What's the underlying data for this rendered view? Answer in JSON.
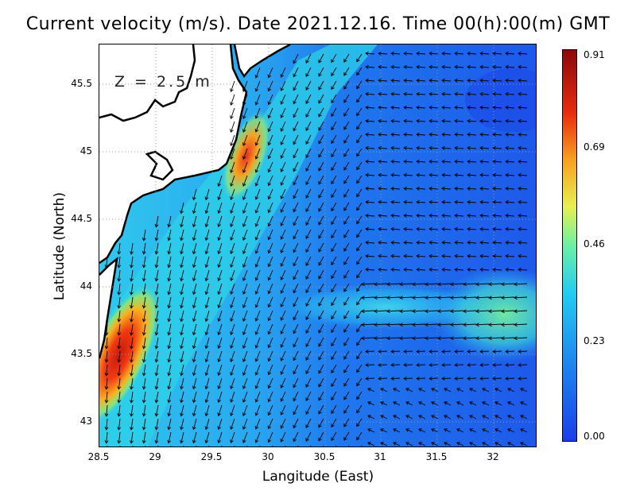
{
  "title": "Current velocity (m/s). Date 2021.12.16. Time 00(h):00(m) GMT",
  "depth_label": "Z = 2.5 m",
  "xaxis": {
    "label": "Langitude (East)",
    "ticks": [
      "28.5",
      "29",
      "29.5",
      "30",
      "30.5",
      "31",
      "31.5",
      "32"
    ]
  },
  "yaxis": {
    "label": "Latitude (North)",
    "ticks": [
      "45.5",
      "45",
      "44.5",
      "44",
      "43.5",
      "43"
    ]
  },
  "colorbar": {
    "ticks": [
      "0.91",
      "0.69",
      "0.46",
      "0.23",
      "0.00"
    ],
    "min": 0.0,
    "max": 0.91,
    "colors": [
      "#1a3fe8",
      "#1f86f0",
      "#23cdf0",
      "#6df0a6",
      "#e8f050",
      "#f7a020",
      "#e82a10",
      "#8b0a0a"
    ]
  },
  "map": {
    "land_color": "#ffffff",
    "coast_color": "#000000",
    "grid": true
  }
}
